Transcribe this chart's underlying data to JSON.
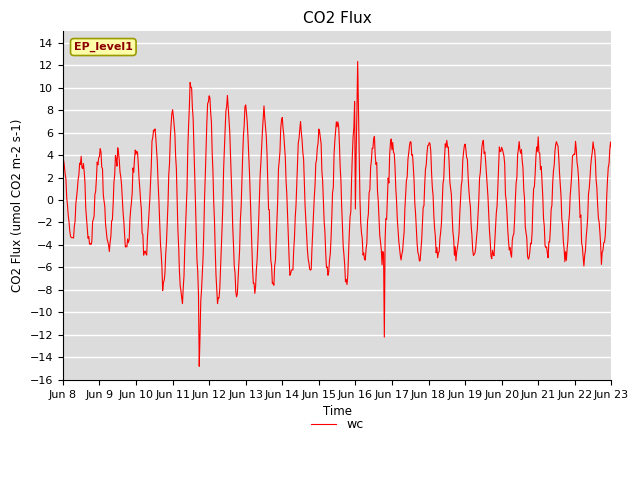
{
  "title": "CO2 Flux",
  "ylabel": "CO2 Flux (umol CO2 m-2 s-1)",
  "xlabel": "Time",
  "line_color": "#FF0000",
  "line_label": "wc",
  "annotation_text": "EP_level1",
  "ylim": [
    -16,
    15
  ],
  "yticks": [
    -16,
    -14,
    -12,
    -10,
    -8,
    -6,
    -4,
    -2,
    0,
    2,
    4,
    6,
    8,
    10,
    12,
    14
  ],
  "background_color": "#DCDCDC",
  "title_fontsize": 11,
  "axis_fontsize": 8.5,
  "tick_fontsize": 8,
  "x_date_labels": [
    "Jun 8",
    "Jun 9",
    "Jun 10",
    "Jun 11",
    "Jun 12",
    "Jun 13",
    "Jun 14",
    "Jun 15",
    "Jun 16",
    "Jun 17",
    "Jun 18",
    "Jun 19",
    "Jun 20",
    "Jun 21",
    "Jun 22",
    "Jun 23"
  ],
  "x_tick_positions": [
    0,
    24,
    48,
    72,
    96,
    120,
    144,
    168,
    192,
    216,
    240,
    264,
    288,
    312,
    336,
    360
  ]
}
